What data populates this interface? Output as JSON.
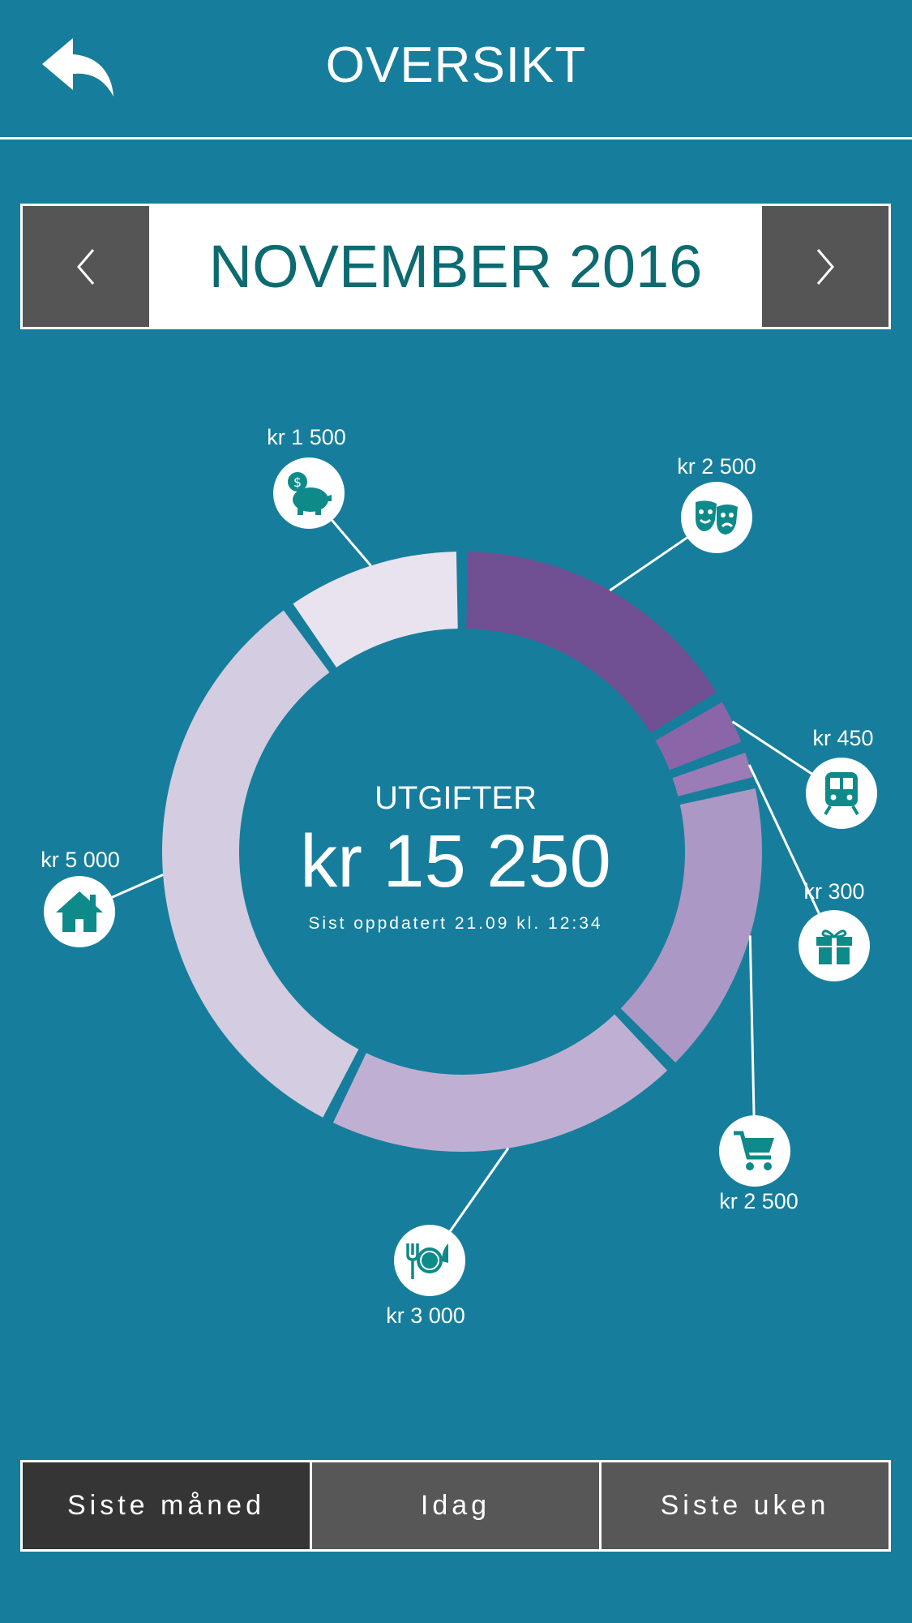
{
  "header": {
    "title": "OVERSIKT"
  },
  "month_selector": {
    "label": "NOVEMBER 2016"
  },
  "summary": {
    "title": "UTGIFTER",
    "total": "kr 15 250",
    "updated": "Sist oppdatert 21.09 kl. 12:34"
  },
  "categories": [
    {
      "icon": "theater-masks-icon",
      "amount": "kr 2 500",
      "value": 2500,
      "color": "#704f92"
    },
    {
      "icon": "train-icon",
      "amount": "kr 450",
      "value": 450,
      "color": "#8a66a8"
    },
    {
      "icon": "gift-icon",
      "amount": "kr 300",
      "value": 300,
      "color": "#9b7cb7"
    },
    {
      "icon": "shopping-cart-icon",
      "amount": "kr 2 500",
      "value": 2500,
      "color": "#ac98c4"
    },
    {
      "icon": "restaurant-plate-icon",
      "amount": "kr 3 000",
      "value": 3000,
      "color": "#bfb0d3"
    },
    {
      "icon": "house-icon",
      "amount": "kr 5 000",
      "value": 5000,
      "color": "#d4cce0"
    },
    {
      "icon": "piggy-bank-icon",
      "amount": "kr 1 500",
      "value": 1500,
      "color": "#e8e3ef"
    }
  ],
  "tabs": [
    {
      "label": "Siste måned",
      "active": true
    },
    {
      "label": "Idag",
      "active": false
    },
    {
      "label": "Siste uken",
      "active": false
    }
  ],
  "colors": {
    "background": "#167e9c",
    "icon": "#0e8a8a",
    "nav": "#555555",
    "active_tab": "#353535"
  }
}
